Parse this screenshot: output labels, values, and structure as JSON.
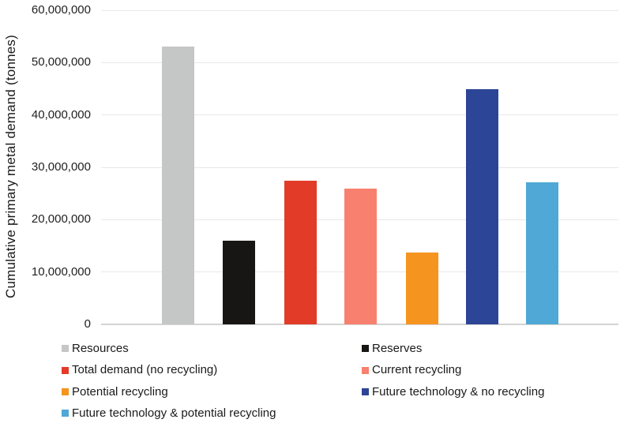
{
  "chart_data": {
    "type": "bar",
    "title": "",
    "xlabel": "",
    "ylabel": "Cumulative primary metal demand (tonnes)",
    "ylim": [
      0,
      60000000
    ],
    "ytick_interval": 10000000,
    "yticks": [
      "60,000,000",
      "50,000,000",
      "40,000,000",
      "30,000,000",
      "20,000,000",
      "10,000,000",
      "0"
    ],
    "grid": true,
    "legend_position": "bottom",
    "series": [
      {
        "name": "Resources",
        "value": 53000000,
        "color": "#c5c6c6"
      },
      {
        "name": "Reserves",
        "value": 16000000,
        "color": "#171615"
      },
      {
        "name": "Total demand (no recycling)",
        "value": 27500000,
        "color": "#e23b27"
      },
      {
        "name": "Current recycling",
        "value": 26000000,
        "color": "#f8806e"
      },
      {
        "name": "Potential recycling",
        "value": 13700000,
        "color": "#f5941f"
      },
      {
        "name": "Future technology & no recycling",
        "value": 45000000,
        "color": "#2d4596"
      },
      {
        "name": "Future technology & potential recycling",
        "value": 27200000,
        "color": "#4fa8d5"
      }
    ]
  }
}
